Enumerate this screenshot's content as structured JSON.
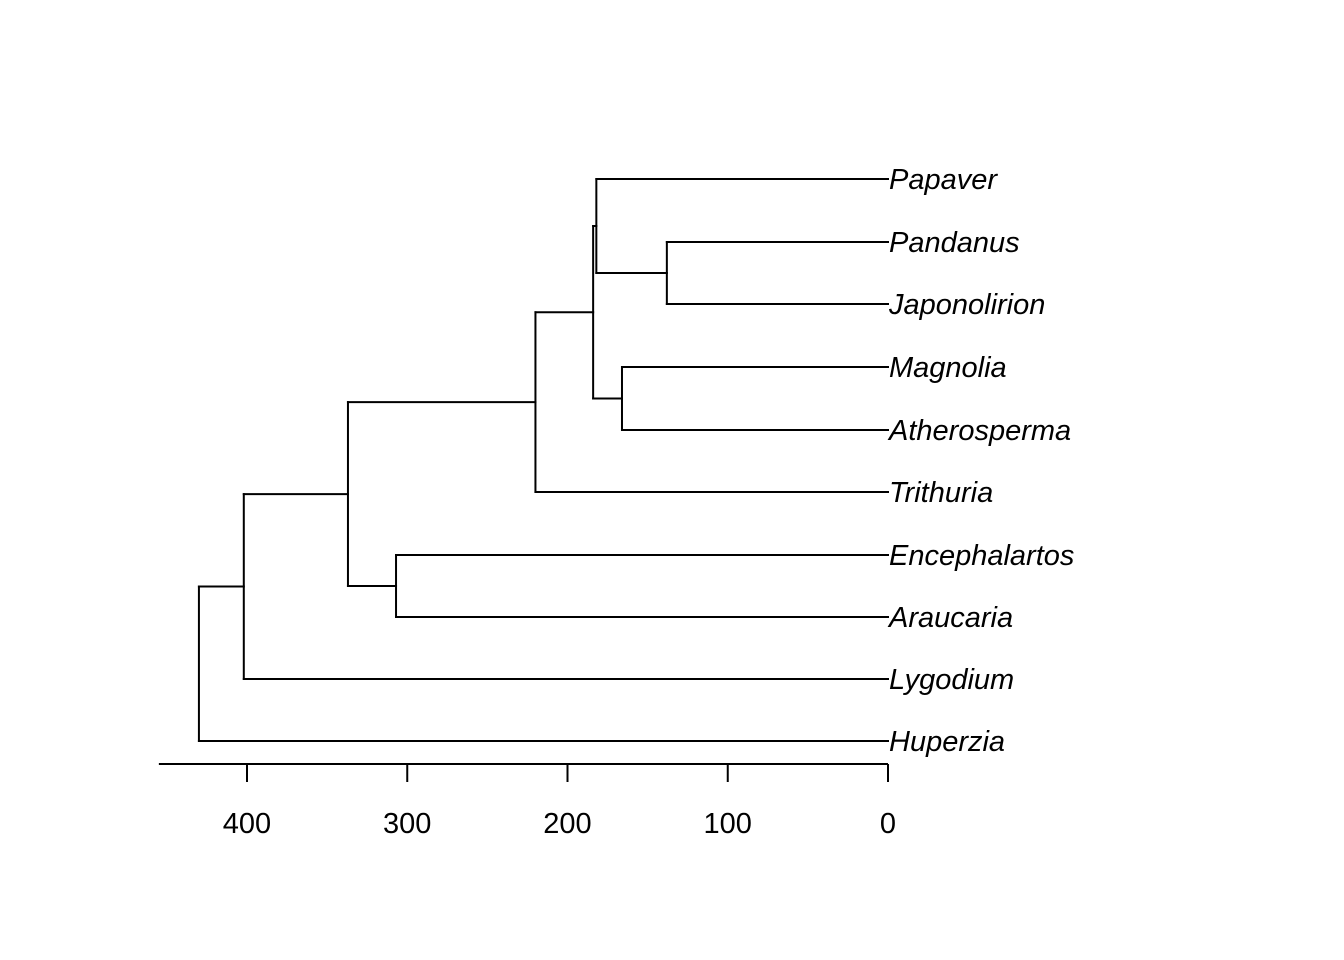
{
  "tree": {
    "tips": [
      {
        "id": "papaver",
        "label": "Papaver"
      },
      {
        "id": "pandanus",
        "label": "Pandanus"
      },
      {
        "id": "japonolirion",
        "label": "Japonolirion"
      },
      {
        "id": "magnolia",
        "label": "Magnolia"
      },
      {
        "id": "atherosperma",
        "label": "Atherosperma"
      },
      {
        "id": "trithuria",
        "label": "Trithuria"
      },
      {
        "id": "encephalartos",
        "label": "Encephalartos"
      },
      {
        "id": "araucaria",
        "label": "Araucaria"
      },
      {
        "id": "lygodium",
        "label": "Lygodium"
      },
      {
        "id": "huperzia",
        "label": "Huperzia"
      }
    ],
    "nodes": [
      {
        "id": "n-pandanus-japonolirion",
        "age": 138,
        "children": [
          "pandanus",
          "japonolirion"
        ]
      },
      {
        "id": "n-papaver-monocots",
        "age": 182,
        "children": [
          "papaver",
          "n-pandanus-japonolirion"
        ]
      },
      {
        "id": "n-magnoliids",
        "age": 166,
        "children": [
          "magnolia",
          "atherosperma"
        ]
      },
      {
        "id": "n-mesangiosperms",
        "age": 184,
        "children": [
          "n-papaver-monocots",
          "n-magnoliids"
        ]
      },
      {
        "id": "n-angiosperms",
        "age": 220,
        "children": [
          "n-mesangiosperms",
          "trithuria"
        ]
      },
      {
        "id": "n-gymnosperms",
        "age": 307,
        "children": [
          "encephalartos",
          "araucaria"
        ]
      },
      {
        "id": "n-seed-plants",
        "age": 337,
        "children": [
          "n-angiosperms",
          "n-gymnosperms"
        ]
      },
      {
        "id": "n-euphyllophytes",
        "age": 402,
        "children": [
          "n-seed-plants",
          "lygodium"
        ]
      },
      {
        "id": "n-root",
        "age": 430,
        "children": [
          "n-euphyllophytes",
          "huperzia"
        ]
      }
    ]
  },
  "axis": {
    "range": [
      455,
      0
    ],
    "ticks": [
      {
        "value": 400,
        "label": "400"
      },
      {
        "value": 300,
        "label": "300"
      },
      {
        "value": 200,
        "label": "200"
      },
      {
        "value": 100,
        "label": "100"
      },
      {
        "value": 0,
        "label": "0"
      }
    ]
  }
}
